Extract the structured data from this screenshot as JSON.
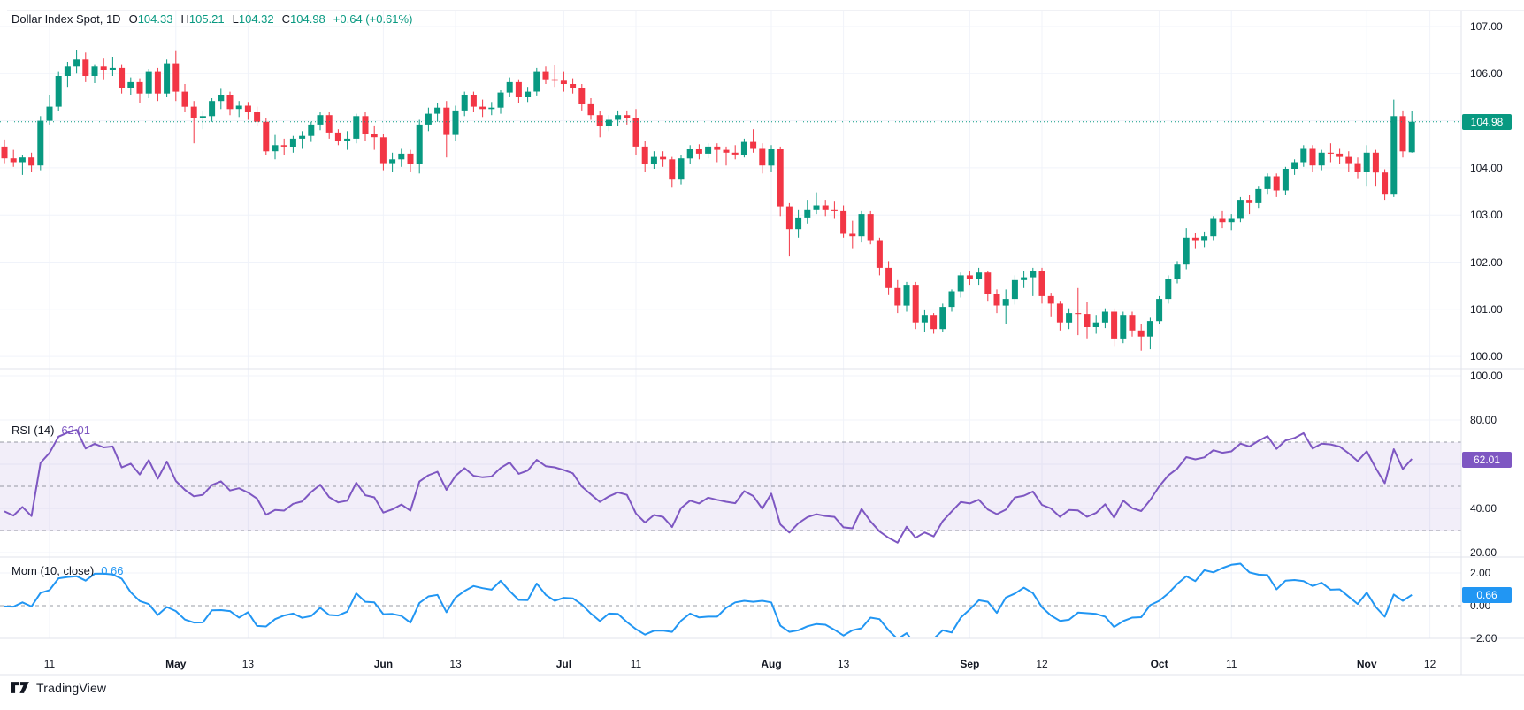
{
  "legend": {
    "symbol": "Dollar Index Spot, 1D",
    "open_label": "O",
    "open": "104.33",
    "high_label": "H",
    "high": "105.21",
    "low_label": "L",
    "low": "104.32",
    "close_label": "C",
    "close": "104.98",
    "change": "+0.64 (+0.61%)"
  },
  "rsi_legend": {
    "label": "RSI (14)",
    "value": "62.01"
  },
  "mom_legend": {
    "label": "Mom (10, close)",
    "value": "0.66"
  },
  "badges": {
    "price": "104.98",
    "rsi": "62.01",
    "mom": "0.66"
  },
  "footer": {
    "brand": "TradingView"
  },
  "colors": {
    "up": "#089981",
    "down": "#f23645",
    "rsi_line": "#7e57c2",
    "rsi_band": "rgba(126,87,194,0.10)",
    "mom_line": "#2196f3",
    "grid": "#f0f3fa",
    "border": "#e0e3eb",
    "dashed": "#787b86",
    "text": "#131722",
    "price_badge": "#089981",
    "rsi_badge": "#7e57c2",
    "mom_badge": "#2196f3"
  },
  "chart_data": {
    "type": "candlestick",
    "title": "Dollar Index Spot, 1D",
    "panes": [
      "price",
      "RSI (14)",
      "Momentum (10, close)"
    ],
    "price_axis_ticks": [
      {
        "v": 107,
        "t": "107.00"
      },
      {
        "v": 106,
        "t": "106.00"
      },
      {
        "v": 105,
        "t": "105.00"
      },
      {
        "v": 104,
        "t": "104.00"
      },
      {
        "v": 103,
        "t": "103.00"
      },
      {
        "v": 102,
        "t": "102.00"
      },
      {
        "v": 101,
        "t": "101.00"
      },
      {
        "v": 100,
        "t": "100.00"
      }
    ],
    "last_price": 104.98,
    "rsi_axis_ticks": [
      {
        "v": 100,
        "t": "100.00"
      },
      {
        "v": 80,
        "t": "80.00"
      },
      {
        "v": 40,
        "t": "40.00"
      },
      {
        "v": 20,
        "t": "20.00"
      }
    ],
    "rsi_levels": {
      "band": [
        30,
        70
      ],
      "dashed": [
        70,
        50,
        30
      ]
    },
    "rsi_last": 62.01,
    "rsi_period": 14,
    "mom_axis_ticks": [
      {
        "v": 2,
        "t": "2.00"
      },
      {
        "v": 0,
        "t": "0.00"
      },
      {
        "v": -2,
        "t": "−2.00"
      }
    ],
    "mom_zero_dashed": 0,
    "mom_last": 0.66,
    "mom_period": 10,
    "time_ticks": [
      {
        "t": "11",
        "i": 5
      },
      {
        "t": "May",
        "i": 19,
        "b": 1
      },
      {
        "t": "13",
        "i": 27
      },
      {
        "t": "Jun",
        "i": 42,
        "b": 1
      },
      {
        "t": "13",
        "i": 50
      },
      {
        "t": "Jul",
        "i": 62,
        "b": 1
      },
      {
        "t": "11",
        "i": 70
      },
      {
        "t": "Aug",
        "i": 85,
        "b": 1
      },
      {
        "t": "13",
        "i": 93
      },
      {
        "t": "Sep",
        "i": 107,
        "b": 1
      },
      {
        "t": "12",
        "i": 115
      },
      {
        "t": "Oct",
        "i": 128,
        "b": 1
      },
      {
        "t": "11",
        "i": 136
      },
      {
        "t": "Nov",
        "i": 151,
        "b": 1
      },
      {
        "t": "12",
        "i": 158
      }
    ],
    "pre_closes": [
      104.6,
      104.52,
      104.38,
      104.45,
      104.3,
      104.12,
      104.25,
      104.18,
      104.02,
      104.1,
      104.22,
      104.35,
      104.28,
      104.4,
      104.5,
      104.42
    ],
    "candles": [
      [
        104.45,
        104.6,
        104.1,
        104.2
      ],
      [
        104.2,
        104.38,
        104.02,
        104.12
      ],
      [
        104.12,
        104.28,
        103.85,
        104.22
      ],
      [
        104.22,
        104.32,
        103.92,
        104.05
      ],
      [
        104.05,
        105.1,
        103.95,
        105.0
      ],
      [
        105.0,
        105.55,
        104.92,
        105.3
      ],
      [
        105.3,
        106.05,
        105.2,
        105.95
      ],
      [
        105.95,
        106.25,
        105.72,
        106.15
      ],
      [
        106.15,
        106.5,
        106.0,
        106.3
      ],
      [
        106.3,
        106.45,
        105.82,
        105.95
      ],
      [
        105.95,
        106.2,
        105.8,
        106.15
      ],
      [
        106.15,
        106.32,
        105.88,
        106.08
      ],
      [
        106.08,
        106.35,
        105.95,
        106.12
      ],
      [
        106.12,
        106.2,
        105.58,
        105.7
      ],
      [
        105.7,
        105.92,
        105.55,
        105.82
      ],
      [
        105.82,
        105.9,
        105.38,
        105.58
      ],
      [
        105.58,
        106.1,
        105.48,
        106.05
      ],
      [
        106.05,
        106.12,
        105.42,
        105.58
      ],
      [
        105.58,
        106.3,
        105.5,
        106.22
      ],
      [
        106.22,
        106.48,
        105.42,
        105.62
      ],
      [
        105.62,
        105.78,
        105.18,
        105.3
      ],
      [
        105.3,
        105.42,
        104.52,
        105.05
      ],
      [
        105.05,
        105.22,
        104.82,
        105.1
      ],
      [
        105.1,
        105.48,
        104.98,
        105.42
      ],
      [
        105.42,
        105.68,
        105.25,
        105.55
      ],
      [
        105.55,
        105.62,
        105.12,
        105.25
      ],
      [
        105.25,
        105.42,
        105.08,
        105.32
      ],
      [
        105.32,
        105.4,
        105.02,
        105.18
      ],
      [
        105.18,
        105.3,
        104.88,
        104.98
      ],
      [
        104.98,
        105.05,
        104.28,
        104.35
      ],
      [
        104.35,
        104.7,
        104.18,
        104.48
      ],
      [
        104.48,
        104.62,
        104.28,
        104.45
      ],
      [
        104.45,
        104.68,
        104.32,
        104.62
      ],
      [
        104.62,
        104.78,
        104.42,
        104.68
      ],
      [
        104.68,
        104.98,
        104.55,
        104.92
      ],
      [
        104.92,
        105.18,
        104.8,
        105.12
      ],
      [
        105.12,
        105.18,
        104.62,
        104.75
      ],
      [
        104.75,
        104.82,
        104.48,
        104.58
      ],
      [
        104.58,
        104.78,
        104.38,
        104.62
      ],
      [
        104.62,
        105.15,
        104.52,
        105.1
      ],
      [
        105.1,
        105.18,
        104.58,
        104.72
      ],
      [
        104.72,
        104.9,
        104.38,
        104.65
      ],
      [
        104.65,
        104.72,
        103.95,
        104.1
      ],
      [
        104.1,
        104.32,
        103.92,
        104.18
      ],
      [
        104.18,
        104.42,
        104.02,
        104.3
      ],
      [
        104.3,
        104.38,
        103.92,
        104.08
      ],
      [
        104.08,
        105.02,
        103.88,
        104.92
      ],
      [
        104.92,
        105.28,
        104.78,
        105.15
      ],
      [
        105.15,
        105.38,
        104.98,
        105.28
      ],
      [
        105.28,
        105.42,
        104.22,
        104.7
      ],
      [
        104.7,
        105.32,
        104.58,
        105.22
      ],
      [
        105.22,
        105.62,
        105.1,
        105.55
      ],
      [
        105.55,
        105.62,
        105.18,
        105.3
      ],
      [
        105.3,
        105.45,
        105.08,
        105.25
      ],
      [
        105.25,
        105.4,
        105.12,
        105.28
      ],
      [
        105.28,
        105.65,
        105.15,
        105.6
      ],
      [
        105.6,
        105.92,
        105.5,
        105.82
      ],
      [
        105.82,
        105.88,
        105.38,
        105.5
      ],
      [
        105.5,
        105.72,
        105.4,
        105.62
      ],
      [
        105.62,
        106.12,
        105.52,
        106.05
      ],
      [
        106.05,
        106.15,
        105.78,
        105.88
      ],
      [
        105.88,
        106.18,
        105.72,
        105.85
      ],
      [
        105.85,
        106.05,
        105.62,
        105.78
      ],
      [
        105.78,
        105.9,
        105.58,
        105.7
      ],
      [
        105.7,
        105.78,
        105.22,
        105.35
      ],
      [
        105.35,
        105.48,
        105.02,
        105.12
      ],
      [
        105.12,
        105.2,
        104.65,
        104.88
      ],
      [
        104.88,
        105.12,
        104.78,
        105.02
      ],
      [
        105.02,
        105.22,
        104.88,
        105.12
      ],
      [
        105.12,
        105.22,
        104.92,
        105.05
      ],
      [
        105.05,
        105.25,
        104.28,
        104.45
      ],
      [
        104.45,
        104.58,
        103.92,
        104.08
      ],
      [
        104.08,
        104.35,
        103.98,
        104.25
      ],
      [
        104.25,
        104.35,
        104.02,
        104.18
      ],
      [
        104.18,
        104.25,
        103.58,
        103.75
      ],
      [
        103.75,
        104.28,
        103.65,
        104.2
      ],
      [
        104.2,
        104.48,
        104.08,
        104.4
      ],
      [
        104.4,
        104.5,
        104.18,
        104.3
      ],
      [
        104.3,
        104.52,
        104.2,
        104.45
      ],
      [
        104.45,
        104.52,
        104.12,
        104.38
      ],
      [
        104.38,
        104.45,
        104.05,
        104.32
      ],
      [
        104.32,
        104.48,
        104.18,
        104.28
      ],
      [
        104.28,
        104.62,
        104.22,
        104.55
      ],
      [
        104.55,
        104.82,
        104.32,
        104.42
      ],
      [
        104.42,
        104.52,
        103.88,
        104.05
      ],
      [
        104.05,
        104.48,
        103.92,
        104.4
      ],
      [
        104.4,
        104.45,
        102.98,
        103.18
      ],
      [
        103.18,
        103.25,
        102.12,
        102.7
      ],
      [
        102.7,
        103.12,
        102.52,
        102.95
      ],
      [
        102.95,
        103.32,
        102.82,
        103.12
      ],
      [
        103.12,
        103.48,
        103.02,
        103.2
      ],
      [
        103.2,
        103.32,
        102.98,
        103.12
      ],
      [
        103.12,
        103.3,
        102.92,
        103.08
      ],
      [
        103.08,
        103.2,
        102.52,
        102.6
      ],
      [
        102.6,
        102.88,
        102.28,
        102.55
      ],
      [
        102.55,
        103.08,
        102.42,
        103.02
      ],
      [
        103.02,
        103.08,
        102.38,
        102.45
      ],
      [
        102.45,
        102.52,
        101.72,
        101.88
      ],
      [
        101.88,
        102.02,
        101.3,
        101.45
      ],
      [
        101.45,
        101.62,
        100.92,
        101.08
      ],
      [
        101.08,
        101.58,
        100.95,
        101.52
      ],
      [
        101.52,
        101.58,
        100.58,
        100.72
      ],
      [
        100.72,
        100.98,
        100.52,
        100.88
      ],
      [
        100.88,
        100.92,
        100.48,
        100.58
      ],
      [
        100.58,
        101.12,
        100.52,
        101.05
      ],
      [
        101.05,
        101.42,
        100.95,
        101.38
      ],
      [
        101.38,
        101.78,
        101.25,
        101.72
      ],
      [
        101.72,
        101.82,
        101.52,
        101.65
      ],
      [
        101.65,
        101.88,
        101.52,
        101.78
      ],
      [
        101.78,
        101.82,
        101.18,
        101.32
      ],
      [
        101.32,
        101.42,
        100.92,
        101.08
      ],
      [
        101.08,
        101.42,
        100.68,
        101.22
      ],
      [
        101.22,
        101.72,
        101.1,
        101.62
      ],
      [
        101.62,
        101.82,
        101.45,
        101.68
      ],
      [
        101.68,
        101.88,
        101.28,
        101.82
      ],
      [
        101.82,
        101.88,
        101.12,
        101.28
      ],
      [
        101.28,
        101.35,
        100.85,
        101.12
      ],
      [
        101.12,
        101.18,
        100.55,
        100.72
      ],
      [
        100.72,
        101.02,
        100.58,
        100.92
      ],
      [
        100.92,
        101.45,
        100.45,
        100.9
      ],
      [
        100.9,
        101.15,
        100.38,
        100.62
      ],
      [
        100.62,
        100.88,
        100.48,
        100.72
      ],
      [
        100.72,
        101.02,
        100.6,
        100.95
      ],
      [
        100.95,
        101.02,
        100.22,
        100.38
      ],
      [
        100.38,
        100.95,
        100.28,
        100.88
      ],
      [
        100.88,
        100.95,
        100.42,
        100.55
      ],
      [
        100.55,
        100.68,
        100.12,
        100.42
      ],
      [
        100.42,
        100.82,
        100.15,
        100.75
      ],
      [
        100.75,
        101.28,
        100.68,
        101.22
      ],
      [
        101.22,
        101.72,
        101.12,
        101.65
      ],
      [
        101.65,
        102.02,
        101.55,
        101.95
      ],
      [
        101.95,
        102.72,
        101.85,
        102.52
      ],
      [
        102.52,
        102.62,
        102.28,
        102.45
      ],
      [
        102.45,
        102.65,
        102.32,
        102.55
      ],
      [
        102.55,
        102.98,
        102.45,
        102.92
      ],
      [
        102.92,
        103.08,
        102.72,
        102.85
      ],
      [
        102.85,
        103.02,
        102.68,
        102.92
      ],
      [
        102.92,
        103.38,
        102.85,
        103.32
      ],
      [
        103.32,
        103.42,
        103.02,
        103.25
      ],
      [
        103.25,
        103.62,
        103.15,
        103.55
      ],
      [
        103.55,
        103.88,
        103.45,
        103.82
      ],
      [
        103.82,
        103.88,
        103.38,
        103.52
      ],
      [
        103.52,
        104.02,
        103.42,
        103.98
      ],
      [
        103.98,
        104.18,
        103.85,
        104.12
      ],
      [
        104.12,
        104.48,
        104.02,
        104.42
      ],
      [
        104.42,
        104.48,
        103.92,
        104.05
      ],
      [
        104.05,
        104.38,
        103.95,
        104.32
      ],
      [
        104.32,
        104.52,
        104.12,
        104.3
      ],
      [
        104.3,
        104.42,
        104.08,
        104.25
      ],
      [
        104.25,
        104.35,
        103.92,
        104.1
      ],
      [
        104.1,
        104.22,
        103.78,
        103.92
      ],
      [
        103.92,
        104.48,
        103.62,
        104.32
      ],
      [
        104.32,
        104.38,
        103.62,
        103.9
      ],
      [
        103.9,
        103.97,
        103.32,
        103.45
      ],
      [
        103.45,
        105.45,
        103.38,
        105.1
      ],
      [
        105.1,
        105.22,
        104.22,
        104.35
      ],
      [
        104.33,
        105.21,
        104.32,
        104.98
      ]
    ]
  }
}
